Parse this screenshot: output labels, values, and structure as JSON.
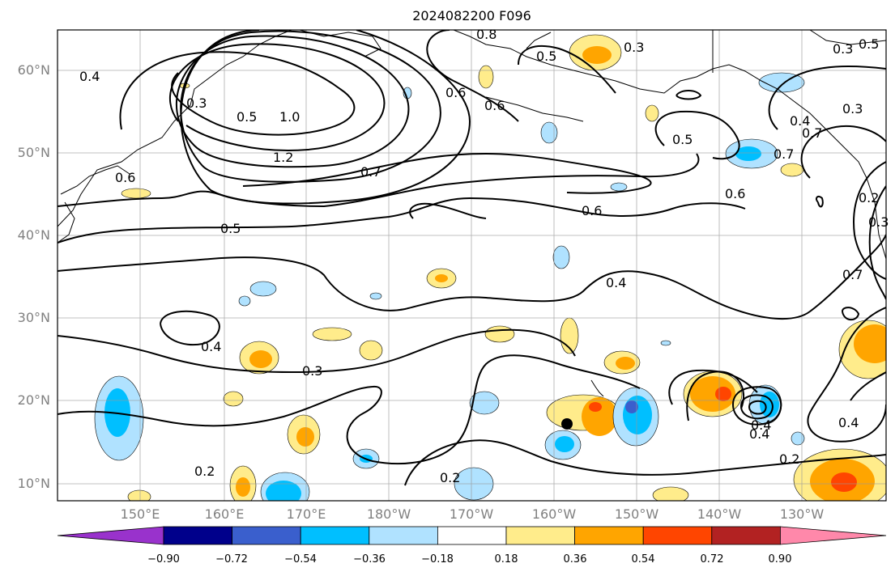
{
  "map": {
    "title": "2024082200 F096",
    "y_ticks": [
      "60°N",
      "50°N",
      "40°N",
      "30°N",
      "20°N",
      "10°N"
    ],
    "x_ticks": [
      "150°E",
      "160°E",
      "170°E",
      "180°W",
      "170°W",
      "160°W",
      "150°W",
      "140°W",
      "130°W"
    ],
    "contour_labels": [
      "0.4",
      "0.3",
      "0.5",
      "1.0",
      "1.2",
      "0.6",
      "0.7",
      "0.5",
      "0.8",
      "0.6",
      "0.5",
      "0.3",
      "0.6",
      "0.7",
      "0.6",
      "0.5",
      "0.4",
      "0.3",
      "0.4",
      "0.2",
      "0.2",
      "0.4",
      "0.4",
      "0.2",
      "0.3",
      "0.5",
      "0.3",
      "0.2",
      "0.6",
      "0.7",
      "0.4",
      "0.3",
      "0.7",
      "0.4"
    ]
  },
  "colorbar": {
    "ticks": [
      "−0.90",
      "−0.72",
      "−0.54",
      "−0.36",
      "−0.18",
      "0.18",
      "0.36",
      "0.54",
      "0.72",
      "0.90"
    ],
    "colors": [
      "#9932cc",
      "#00008b",
      "#3a5fcd",
      "#00bfff",
      "#b0e2ff",
      "#ffffff",
      "#ffec8b",
      "#ffa500",
      "#ff4500",
      "#b22222",
      "#ff88aa"
    ]
  }
}
